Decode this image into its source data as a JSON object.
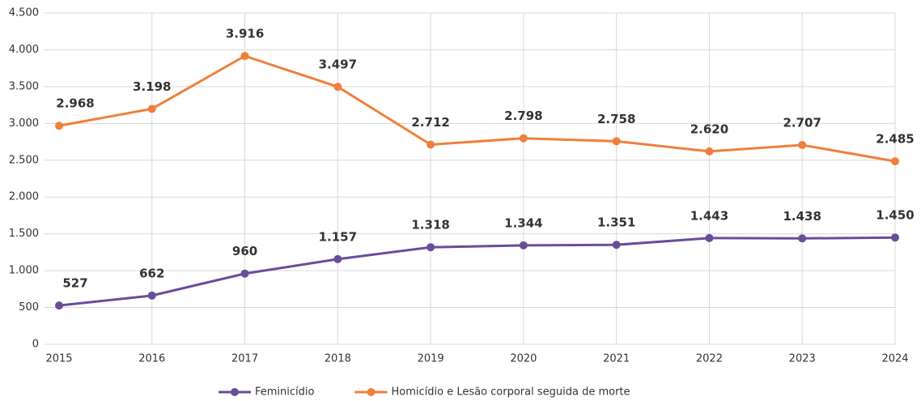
{
  "chart_data": {
    "type": "line",
    "categories": [
      "2015",
      "2016",
      "2017",
      "2018",
      "2019",
      "2020",
      "2021",
      "2022",
      "2023",
      "2024"
    ],
    "series": [
      {
        "name": "Feminicídio",
        "color": "#6b4c9a",
        "values": [
          527,
          662,
          960,
          1157,
          1318,
          1344,
          1351,
          1443,
          1438,
          1450
        ],
        "value_labels": [
          "527",
          "662",
          "960",
          "1.157",
          "1.318",
          "1.344",
          "1.351",
          "1.443",
          "1.438",
          "1.450"
        ]
      },
      {
        "name": "Homicídio e Lesão corporal seguida de morte",
        "color": "#f07f3c",
        "values": [
          2968,
          3198,
          3916,
          3497,
          2712,
          2798,
          2758,
          2620,
          2707,
          2485
        ],
        "value_labels": [
          "2.968",
          "3.198",
          "3.916",
          "3.497",
          "2.712",
          "2.798",
          "2.758",
          "2.620",
          "2.707",
          "2.485"
        ]
      }
    ],
    "ylim": [
      0,
      4500
    ],
    "yticks": [
      0,
      500,
      {
        "value": 1000,
        "label": "1.000"
      },
      {
        "value": 1500,
        "label": "1.500"
      },
      {
        "value": 2000,
        "label": "2.000"
      },
      {
        "value": 2500,
        "label": "2.500"
      },
      {
        "value": 3000,
        "label": "3.000"
      },
      {
        "value": 3500,
        "label": "3.500"
      },
      {
        "value": 4000,
        "label": "4.000"
      },
      {
        "value": 4500,
        "label": "4.500"
      }
    ],
    "grid": true,
    "legend": "bottom"
  }
}
